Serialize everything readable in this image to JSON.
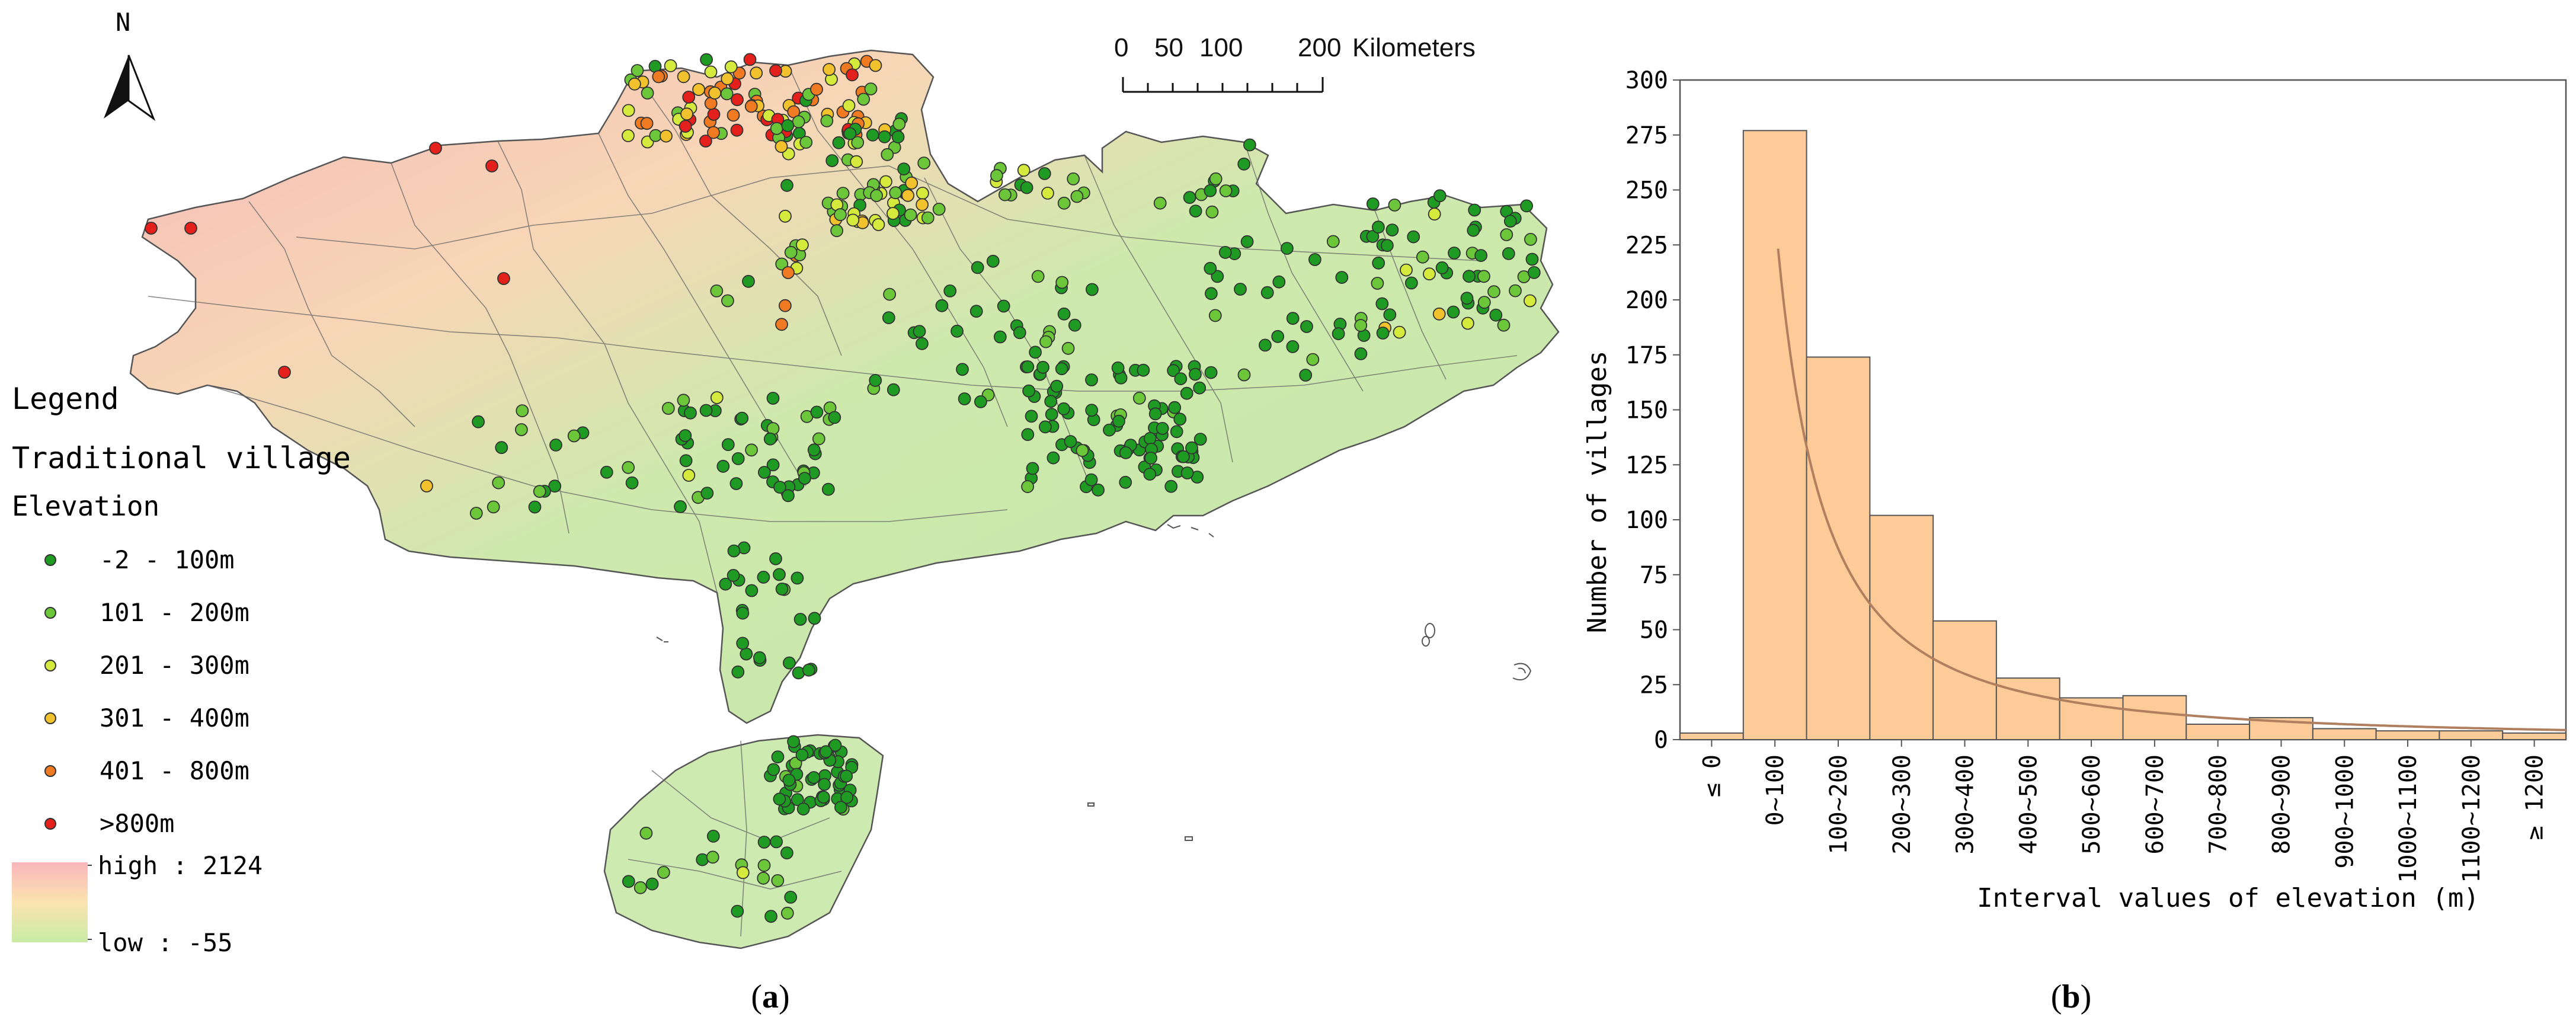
{
  "panel_a": {
    "north_label": "N",
    "scale_bar": {
      "ticks": [
        "0",
        "50",
        "100",
        "200"
      ],
      "unit": "Kilometers"
    },
    "legend": {
      "title": "Legend",
      "layer_title": "Traditional village",
      "field_title": "Elevation",
      "classes": [
        {
          "label": "-2 - 100m",
          "color": "#1f9a22"
        },
        {
          "label": "101 - 200m",
          "color": "#6cc63a"
        },
        {
          "label": "201 - 300m",
          "color": "#d4ea3c"
        },
        {
          "label": "301 - 400m",
          "color": "#f2c12e"
        },
        {
          "label": "401 - 800m",
          "color": "#ef7a22"
        },
        {
          "label": ">800m",
          "color": "#e3201b"
        }
      ],
      "ramp": {
        "high_label": "high : 2124",
        "low_label": "low : -55",
        "colors": [
          "#f9b6bb",
          "#fbe3b0",
          "#c9eba6"
        ]
      }
    },
    "caption": {
      "open": "(",
      "letter": "a",
      "close": ")"
    }
  },
  "panel_b": {
    "caption": {
      "open": "(",
      "letter": "b",
      "close": ")"
    },
    "chart_data": {
      "type": "bar",
      "categories": [
        "≤ 0",
        "0~100",
        "100~200",
        "200~300",
        "300~400",
        "400~500",
        "500~600",
        "600~700",
        "700~800",
        "800~900",
        "900~1000",
        "1000~1100",
        "1100~1200",
        "≥ 1200"
      ],
      "values": [
        3,
        277,
        174,
        102,
        54,
        28,
        19,
        20,
        7,
        10,
        5,
        4,
        4,
        3
      ],
      "xlabel": "Interval values of elevation (m)",
      "ylabel": "Number of villages",
      "ylim": [
        0,
        300
      ],
      "yticks": [
        0,
        25,
        50,
        75,
        100,
        125,
        150,
        175,
        200,
        225,
        250,
        275,
        300
      ],
      "bar_color": "#fdcb97",
      "curve_color": "#b07f5f",
      "fit_curve": true
    }
  }
}
